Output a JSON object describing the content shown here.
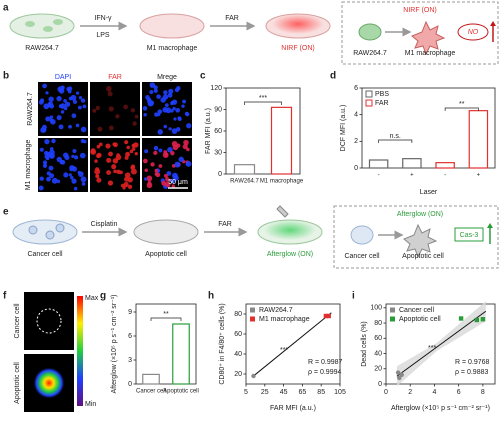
{
  "figure": {
    "panel_labels": [
      "a",
      "b",
      "c",
      "d",
      "e",
      "f",
      "g",
      "h",
      "i"
    ],
    "a": {
      "cells": [
        "RAW264.7",
        "M1 macrophage"
      ],
      "arrow1": [
        "IFN-γ",
        "LPS"
      ],
      "arrow2": "FAR",
      "result": "NIRF (ON)",
      "box_title": "NIRF (ON)",
      "box_cells": [
        "RAW264.7",
        "M1 macrophage"
      ],
      "marker": "NO"
    },
    "b": {
      "columns": [
        "DAPI",
        "FAR",
        "Mrege"
      ],
      "rows": [
        "RAW264.7",
        "M1 macrophage"
      ],
      "scale": "50 μm"
    },
    "e": {
      "cells": [
        "Cancer cell",
        "Apoptotic cell"
      ],
      "arrow1": "Cisplatin",
      "arrow2": "FAR",
      "result": "Afterglow (ON)",
      "box_title": "Afterglow (ON)",
      "box_cells": [
        "Cancer cell",
        "Apoptotic cell"
      ],
      "marker": "Cas-3"
    },
    "f": {
      "rows": [
        "Cancer cell",
        "Apoptotic cell"
      ],
      "colorbar": [
        "Max",
        "Min"
      ]
    }
  },
  "chart_data": [
    {
      "type": "bar",
      "ylabel": "FAR MFI (a.u.)",
      "categories": [
        "RAW264.7",
        "M1 macrophage"
      ],
      "values": [
        13,
        93
      ],
      "colors": [
        "#888888",
        "#e0312f"
      ],
      "ylim": [
        0,
        120
      ],
      "yticks": [
        0,
        30,
        60,
        90,
        120
      ],
      "annotations": [
        "***"
      ]
    },
    {
      "type": "bar",
      "ylabel": "DCF MFI (a.u.)",
      "xlabel": "Laser",
      "categories": [
        "-",
        "+",
        "-",
        "+"
      ],
      "series": [
        {
          "name": "PBS",
          "color": "#666666",
          "values": [
            0.6,
            0.7,
            null,
            null
          ]
        },
        {
          "name": "FAR",
          "color": "#e0312f",
          "values": [
            null,
            null,
            0.4,
            4.3
          ]
        }
      ],
      "ylim": [
        0,
        6
      ],
      "yticks": [
        0,
        2,
        4,
        6
      ],
      "legend": "top-left",
      "annotations": [
        "n.s.",
        "**"
      ]
    },
    {
      "type": "bar",
      "ylabel": "Afterglow (×10⁵ p s⁻¹ cm⁻² sr⁻¹)",
      "categories": [
        "Cancer cell",
        "Apoptotic cell"
      ],
      "values": [
        1.2,
        7.5
      ],
      "colors": [
        "#888888",
        "#2a9d3a"
      ],
      "ylim": [
        0,
        10
      ],
      "yticks": [
        0,
        3,
        6,
        9
      ],
      "annotations": [
        "**"
      ]
    },
    {
      "type": "scatter",
      "ylabel": "CD80⁺ in F4/80⁺ cells (%)",
      "xlabel": "FAR MFI (a.u.)",
      "series": [
        {
          "name": "RAW264.7",
          "color": "#888888",
          "x": [
            13
          ],
          "values": [
            18
          ]
        },
        {
          "name": "M1 macrophage",
          "color": "#e0312f",
          "x": [
            90,
            93
          ],
          "values": [
            78,
            78
          ]
        }
      ],
      "xlim": [
        5,
        105
      ],
      "xticks": [
        5,
        25,
        45,
        65,
        85,
        105
      ],
      "ylim": [
        10,
        90
      ],
      "yticks": [
        20,
        40,
        60,
        80
      ],
      "legend": "top-left",
      "annotations": [
        "***",
        "R = 0.9987",
        "ρ = 0.9994"
      ]
    },
    {
      "type": "scatter",
      "ylabel": "Dead cells (%)",
      "xlabel": "Afterglow (×10⁵ p s⁻¹ cm⁻² sr⁻¹)",
      "series": [
        {
          "name": "Cancer cell",
          "color": "#888888",
          "x": [
            1.0,
            1.1,
            1.3
          ],
          "values": [
            15,
            8,
            12
          ]
        },
        {
          "name": "Apoptotic cell",
          "color": "#2a9d3a",
          "x": [
            6.2,
            7.5,
            8.0
          ],
          "values": [
            86,
            84,
            85
          ]
        }
      ],
      "xlim": [
        0,
        9
      ],
      "xticks": [
        0,
        2,
        4,
        6,
        8
      ],
      "ylim": [
        0,
        105
      ],
      "yticks": [
        0,
        20,
        40,
        60,
        80,
        100
      ],
      "legend": "top-left",
      "confidence_band": true,
      "annotations": [
        "***",
        "R = 0.9768",
        "ρ = 0.9883"
      ]
    }
  ]
}
